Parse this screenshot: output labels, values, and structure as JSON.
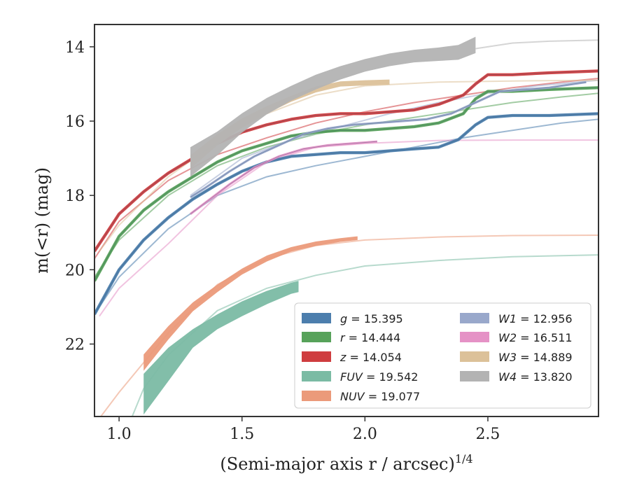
{
  "chart_data": {
    "type": "line",
    "title": "",
    "xlabel": "(Semi-major axis r / arcsec)",
    "xlabel_superscript": "1/4",
    "ylabel": "m(<r) (mag)",
    "xlim": [
      0.9,
      2.95
    ],
    "ylim": [
      23.95,
      13.4
    ],
    "y_inverted": true,
    "xticks": [
      1.0,
      1.5,
      2.0,
      2.5
    ],
    "xtick_labels": [
      "1.0",
      "1.5",
      "2.0",
      "2.5"
    ],
    "yticks": [
      14,
      16,
      18,
      20,
      22
    ],
    "ytick_labels": [
      "14",
      "16",
      "18",
      "20",
      "22"
    ],
    "grid": false,
    "legend_position": "lower-right",
    "legend_columns": 2,
    "legend": [
      {
        "label": "g = 15.395",
        "color": "#4c7ead"
      },
      {
        "label": "r = 14.444",
        "color": "#57a25a"
      },
      {
        "label": "z = 14.054",
        "color": "#cf3d3f"
      },
      {
        "label": "FUV = 19.542",
        "color": "#7bbba4"
      },
      {
        "label": "NUV = 19.077",
        "color": "#eb9a7a"
      },
      {
        "label": "W1 = 12.956",
        "color": "#99a8cb"
      },
      {
        "label": "W2 = 16.511",
        "color": "#e592c6"
      },
      {
        "label": "W3 = 14.889",
        "color": "#dcc199"
      },
      {
        "label": "W4 = 13.820",
        "color": "#b3b3b3"
      }
    ],
    "series": [
      {
        "name": "g",
        "color": "#4c7ead",
        "band_width": 0.08,
        "data_x": [
          0.9,
          0.95,
          1.0,
          1.1,
          1.2,
          1.3,
          1.4,
          1.5,
          1.6,
          1.7,
          1.8,
          1.9,
          2.0,
          2.1,
          2.2,
          2.3,
          2.38,
          2.45,
          2.5,
          2.6,
          2.75,
          2.95
        ],
        "data_y": [
          21.2,
          20.6,
          20.0,
          19.2,
          18.6,
          18.1,
          17.7,
          17.35,
          17.1,
          16.95,
          16.9,
          16.85,
          16.85,
          16.8,
          16.75,
          16.7,
          16.5,
          16.1,
          15.9,
          15.85,
          15.85,
          15.8
        ],
        "model_x": [
          0.9,
          1.0,
          1.2,
          1.4,
          1.6,
          1.8,
          2.0,
          2.2,
          2.4,
          2.6,
          2.8,
          2.95
        ],
        "model_y": [
          21.2,
          20.2,
          18.9,
          18.0,
          17.5,
          17.2,
          16.95,
          16.7,
          16.45,
          16.25,
          16.05,
          15.95
        ]
      },
      {
        "name": "r",
        "color": "#57a25a",
        "band_width": 0.08,
        "data_x": [
          0.9,
          0.95,
          1.0,
          1.1,
          1.2,
          1.3,
          1.4,
          1.5,
          1.6,
          1.7,
          1.8,
          1.9,
          2.0,
          2.1,
          2.2,
          2.3,
          2.4,
          2.45,
          2.5,
          2.6,
          2.75,
          2.95
        ],
        "data_y": [
          20.3,
          19.7,
          19.1,
          18.4,
          17.9,
          17.5,
          17.1,
          16.8,
          16.6,
          16.4,
          16.3,
          16.25,
          16.25,
          16.2,
          16.15,
          16.05,
          15.8,
          15.4,
          15.2,
          15.2,
          15.15,
          15.1
        ],
        "model_x": [
          0.9,
          1.0,
          1.2,
          1.4,
          1.6,
          1.8,
          2.0,
          2.2,
          2.4,
          2.6,
          2.8,
          2.95
        ],
        "model_y": [
          20.2,
          19.2,
          18.0,
          17.2,
          16.7,
          16.35,
          16.1,
          15.9,
          15.7,
          15.5,
          15.35,
          15.25
        ]
      },
      {
        "name": "z",
        "color": "#cf3d3f",
        "band_width": 0.08,
        "data_x": [
          0.9,
          0.95,
          1.0,
          1.1,
          1.2,
          1.3,
          1.4,
          1.5,
          1.6,
          1.7,
          1.8,
          1.9,
          2.0,
          2.1,
          2.2,
          2.3,
          2.4,
          2.45,
          2.5,
          2.6,
          2.75,
          2.95
        ],
        "data_y": [
          19.5,
          19.0,
          18.5,
          17.9,
          17.4,
          17.0,
          16.6,
          16.3,
          16.1,
          15.95,
          15.85,
          15.8,
          15.8,
          15.75,
          15.7,
          15.55,
          15.3,
          15.0,
          14.75,
          14.75,
          14.7,
          14.65
        ],
        "model_x": [
          0.9,
          1.0,
          1.2,
          1.4,
          1.6,
          1.8,
          2.0,
          2.2,
          2.4,
          2.6,
          2.8,
          2.95
        ],
        "model_y": [
          19.7,
          18.7,
          17.6,
          16.9,
          16.45,
          16.05,
          15.75,
          15.5,
          15.3,
          15.1,
          14.95,
          14.85
        ]
      },
      {
        "name": "FUV",
        "color": "#7bbba4",
        "band_width_x": [
          1.1,
          1.3,
          1.45,
          1.55,
          1.67,
          1.73
        ],
        "data_x": [
          1.1,
          1.2,
          1.3,
          1.4,
          1.5,
          1.6,
          1.7,
          1.73
        ],
        "data_y": [
          23.35,
          22.55,
          21.85,
          21.4,
          21.05,
          20.75,
          20.5,
          20.45
        ],
        "band_half": [
          0.55,
          0.45,
          0.25,
          0.2,
          0.2,
          0.18,
          0.15,
          0.15
        ],
        "model_x": [
          1.05,
          1.1,
          1.2,
          1.4,
          1.6,
          1.8,
          2.0,
          2.3,
          2.6,
          2.95
        ],
        "model_y": [
          24.0,
          23.2,
          22.3,
          21.1,
          20.5,
          20.15,
          19.9,
          19.75,
          19.65,
          19.6
        ]
      },
      {
        "name": "NUV",
        "color": "#eb9a7a",
        "data_x": [
          1.1,
          1.2,
          1.3,
          1.4,
          1.5,
          1.6,
          1.7,
          1.8,
          1.9,
          1.97
        ],
        "data_y": [
          22.5,
          21.7,
          21.0,
          20.5,
          20.05,
          19.7,
          19.45,
          19.3,
          19.2,
          19.15
        ],
        "band_half": [
          0.22,
          0.18,
          0.12,
          0.1,
          0.08,
          0.08,
          0.06,
          0.06,
          0.05,
          0.05
        ],
        "model_x": [
          0.92,
          1.0,
          1.1,
          1.2,
          1.4,
          1.6,
          1.8,
          2.0,
          2.3,
          2.6,
          2.95
        ],
        "model_y": [
          24.0,
          23.3,
          22.5,
          21.7,
          20.4,
          19.7,
          19.35,
          19.2,
          19.12,
          19.08,
          19.07
        ]
      },
      {
        "name": "W1",
        "color": "#99a8cb",
        "band_width": 0.06,
        "data_x": [
          1.29,
          1.35,
          1.45,
          1.55,
          1.65,
          1.75,
          1.85,
          1.95,
          2.05,
          2.15,
          2.25,
          2.35,
          2.45,
          2.55,
          2.65,
          2.75,
          2.85,
          2.9
        ],
        "data_y": [
          18.05,
          17.8,
          17.35,
          16.95,
          16.65,
          16.35,
          16.2,
          16.1,
          16.05,
          16.0,
          15.95,
          15.8,
          15.5,
          15.2,
          15.15,
          15.1,
          15.0,
          14.95
        ],
        "model_x": [
          1.29,
          1.5,
          1.7,
          1.9,
          2.1,
          2.3,
          2.5,
          2.7,
          2.95
        ],
        "model_y": [
          18.0,
          17.0,
          16.5,
          16.15,
          15.8,
          15.5,
          15.25,
          15.05,
          14.9
        ]
      },
      {
        "name": "W2",
        "color": "#e592c6",
        "band_width": 0.06,
        "data_x": [
          1.29,
          1.35,
          1.45,
          1.55,
          1.65,
          1.75,
          1.85,
          1.95,
          2.05
        ],
        "data_y": [
          18.5,
          18.2,
          17.7,
          17.25,
          16.95,
          16.75,
          16.65,
          16.6,
          16.55
        ],
        "model_x": [
          0.92,
          1.0,
          1.2,
          1.4,
          1.6,
          1.8,
          2.0,
          2.3,
          2.6,
          2.95
        ],
        "model_y": [
          21.25,
          20.5,
          19.3,
          18.0,
          17.1,
          16.7,
          16.6,
          16.52,
          16.51,
          16.51
        ]
      },
      {
        "name": "W3",
        "color": "#dcc199",
        "data_x": [
          1.29,
          1.4,
          1.5,
          1.6,
          1.7,
          1.8,
          1.9,
          2.0,
          2.1
        ],
        "data_y": [
          17.1,
          16.5,
          16.05,
          15.7,
          15.4,
          15.15,
          15.0,
          14.97,
          14.95
        ],
        "band_half": [
          0.18,
          0.15,
          0.12,
          0.1,
          0.08,
          0.08,
          0.07,
          0.07,
          0.07
        ],
        "model_x": [
          0.92,
          1.0,
          1.2,
          1.4,
          1.6,
          1.8,
          2.0,
          2.3,
          2.6,
          2.95
        ],
        "model_y": [
          19.5,
          18.8,
          17.5,
          16.55,
          15.8,
          15.3,
          15.05,
          14.95,
          14.92,
          14.9
        ]
      },
      {
        "name": "W4",
        "color": "#b3b3b3",
        "data_x": [
          1.29,
          1.4,
          1.5,
          1.6,
          1.7,
          1.8,
          1.9,
          2.0,
          2.1,
          2.2,
          2.3,
          2.38,
          2.45
        ],
        "data_y": [
          17.1,
          16.6,
          16.05,
          15.6,
          15.25,
          14.95,
          14.7,
          14.5,
          14.35,
          14.25,
          14.2,
          14.15,
          13.95
        ],
        "band_half": [
          0.4,
          0.32,
          0.26,
          0.22,
          0.2,
          0.2,
          0.18,
          0.17,
          0.17,
          0.17,
          0.18,
          0.2,
          0.22
        ],
        "model_x": [
          2.45,
          2.6,
          2.75,
          2.95
        ],
        "model_y": [
          14.05,
          13.9,
          13.85,
          13.82
        ]
      }
    ]
  }
}
